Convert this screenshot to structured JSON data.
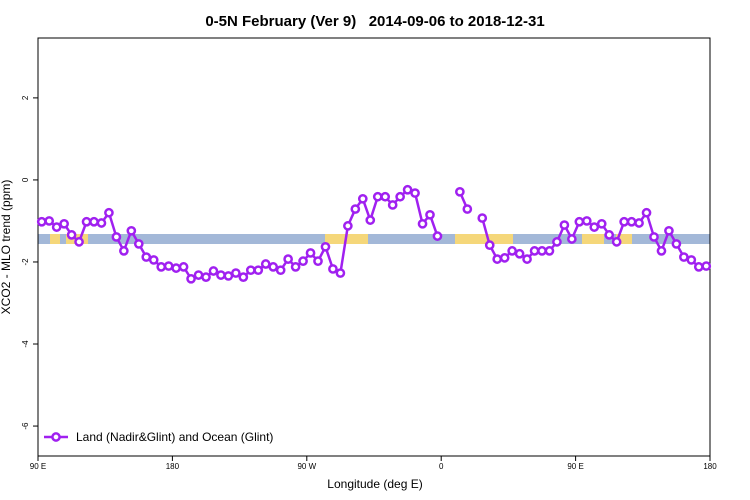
{
  "chart_data": {
    "type": "line",
    "title": "0-5N February (Ver 9)   2014-09-06 to 2018-12-31",
    "x_label": "Longitude (deg E)",
    "y_label": "XCO2 - MLO trend (ppm)",
    "xlim": [
      90,
      540
    ],
    "ylim": [
      -6.73,
      3.46
    ],
    "xticks": [
      {
        "value": 90,
        "label": "90 E"
      },
      180,
      {
        "value": 270,
        "label": "90 W"
      },
      {
        "value": 360,
        "label": "0"
      },
      {
        "value": 450,
        "label": "90 E"
      },
      {
        "value": 540,
        "label": "180"
      }
    ],
    "yticks": [
      -6,
      -4,
      -2,
      0,
      2
    ],
    "legend": "bottom-left",
    "x": [
      92.5,
      97.5,
      102.5,
      107.5,
      112.5,
      117.5,
      122.5,
      127.5,
      132.5,
      137.5,
      142.5,
      147.5,
      152.5,
      157.5,
      162.5,
      167.5,
      172.5,
      177.5,
      182.5,
      187.5,
      192.5,
      197.5,
      202.5,
      207.5,
      212.5,
      217.5,
      222.5,
      227.5,
      232.5,
      237.5,
      242.5,
      247.5,
      252.5,
      257.5,
      262.5,
      267.5,
      272.5,
      277.5,
      282.5,
      287.5,
      292.5,
      297.5,
      302.5,
      307.5,
      312.5,
      317.5,
      322.5,
      327.5,
      332.5,
      337.5,
      342.5,
      347.5,
      352.5,
      357.5,
      362.5,
      367.5,
      372.5,
      377.5,
      382.5,
      387.5,
      392.5,
      397.5,
      402.5,
      407.5,
      412.5,
      417.5,
      422.5,
      427.5,
      432.5,
      437.5,
      442.5,
      447.5,
      452.5,
      457.5,
      462.5,
      467.5,
      472.5,
      477.5,
      482.5,
      487.5,
      492.5,
      497.5,
      502.5,
      507.5,
      512.5,
      517.5,
      522.5,
      527.5,
      532.5,
      537.5
    ],
    "series": [
      {
        "name": "Land (Nadir&Glint) and Ocean (Glint)",
        "color": "#a020f0",
        "values": [
          -1.02,
          -1.0,
          -1.15,
          -1.07,
          -1.34,
          -1.51,
          -1.02,
          -1.02,
          -1.05,
          -0.8,
          -1.39,
          -1.73,
          -1.24,
          -1.56,
          -1.88,
          -1.95,
          -2.12,
          -2.1,
          -2.15,
          -2.12,
          -2.41,
          -2.32,
          -2.37,
          -2.22,
          -2.32,
          -2.34,
          -2.27,
          -2.37,
          -2.2,
          -2.2,
          -2.05,
          -2.12,
          -2.2,
          -1.93,
          -2.12,
          -1.98,
          -1.78,
          -1.98,
          -1.63,
          -2.17,
          -2.27,
          -1.12,
          -0.71,
          -0.46,
          -0.98,
          -0.41,
          -0.41,
          -0.61,
          -0.41,
          -0.24,
          -0.32,
          -1.07,
          -0.85,
          -1.37,
          null,
          null,
          -0.29,
          -0.71,
          null,
          -0.93,
          -1.59,
          -1.93,
          -1.9,
          -1.73,
          -1.8,
          -1.93,
          -1.73,
          -1.73,
          -1.73,
          -1.51,
          -1.1,
          -1.44,
          -1.02,
          -1.0,
          -1.15,
          -1.07,
          -1.34,
          -1.51,
          -1.02,
          -1.02,
          -1.05,
          -0.8,
          -1.39,
          -1.73,
          -1.24,
          -1.56,
          -1.88,
          -1.95,
          -2.12,
          -2.1
        ]
      }
    ]
  }
}
